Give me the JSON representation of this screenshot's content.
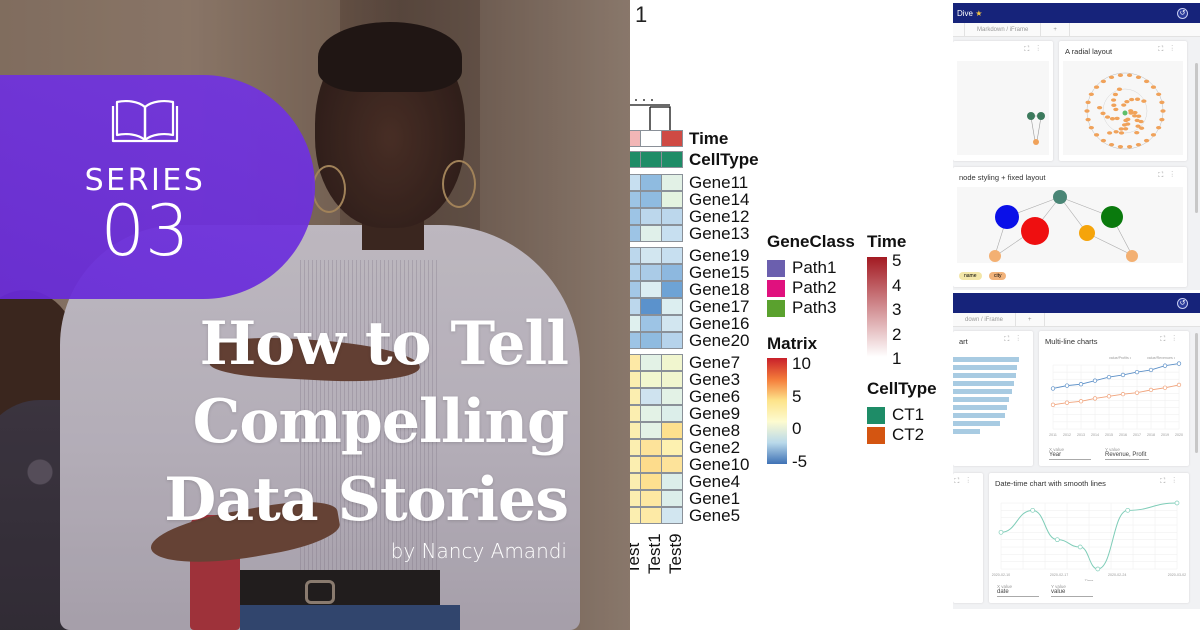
{
  "left_panel": {
    "badge": {
      "icon": "open-book-icon",
      "label": "SERIES",
      "number": "03",
      "color": "#6c2be0"
    },
    "headline_lines": [
      "How to Tell",
      "Compelling",
      "Data Stories"
    ],
    "byline": "by Nancy Amandi"
  },
  "heatmap": {
    "title_fragment": "1",
    "annotation_rows": [
      {
        "label": "Time",
        "colors": [
          "#f2b6b6",
          "#ffffff",
          "#cf4a44"
        ]
      },
      {
        "label": "CellType",
        "colors": [
          "#1e8c67",
          "#1e8c67",
          "#1e8c67"
        ]
      }
    ],
    "gene_groups": [
      {
        "genes": [
          {
            "label": "Gene11",
            "colors": [
              "#c7dff0",
              "#8fbbe0",
              "#e2f1e6"
            ]
          },
          {
            "label": "Gene14",
            "colors": [
              "#9dc4e5",
              "#8fbbe0",
              "#e4f3e0"
            ]
          },
          {
            "label": "Gene12",
            "colors": [
              "#9dc4e5",
              "#bcd7ec",
              "#bcd7ec"
            ]
          },
          {
            "label": "Gene13",
            "colors": [
              "#9dc4e5",
              "#e0f0ea",
              "#c7dff0"
            ]
          }
        ]
      },
      {
        "genes": [
          {
            "label": "Gene19",
            "colors": [
              "#bcd7ec",
              "#d2e6f0",
              "#c7dff0"
            ]
          },
          {
            "label": "Gene15",
            "colors": [
              "#b0d0ea",
              "#aacbe7",
              "#8db8df"
            ]
          },
          {
            "label": "Gene18",
            "colors": [
              "#a3c7e6",
              "#dcedf2",
              "#6ea3d5"
            ]
          },
          {
            "label": "Gene17",
            "colors": [
              "#bcd7ec",
              "#5b92cc",
              "#dceef0"
            ]
          },
          {
            "label": "Gene16",
            "colors": [
              "#dff0ee",
              "#9dc4e5",
              "#d2e6f0"
            ]
          },
          {
            "label": "Gene20",
            "colors": [
              "#9dc4e5",
              "#8fbbe0",
              "#b6d3eb"
            ]
          }
        ]
      },
      {
        "genes": [
          {
            "label": "Gene7",
            "colors": [
              "#fde9a6",
              "#e3f2e6",
              "#f1f6cf"
            ]
          },
          {
            "label": "Gene3",
            "colors": [
              "#fbeeb0",
              "#f2f7cf",
              "#f1f6cf"
            ]
          },
          {
            "label": "Gene6",
            "colors": [
              "#fbeeb0",
              "#cfe3ef",
              "#e3f2e6"
            ]
          },
          {
            "label": "Gene9",
            "colors": [
              "#fbeeb0",
              "#e3f2e6",
              "#dceeea"
            ]
          },
          {
            "label": "Gene8",
            "colors": [
              "#fbeeb0",
              "#e3f2e6",
              "#fde08e"
            ]
          },
          {
            "label": "Gene2",
            "colors": [
              "#fbeeb0",
              "#fde39a",
              "#fdf1b0"
            ]
          },
          {
            "label": "Gene10",
            "colors": [
              "#fbeeb0",
              "#fddc8c",
              "#fde39a"
            ]
          },
          {
            "label": "Gene4",
            "colors": [
              "#fbeeb0",
              "#fde090",
              "#dceeea"
            ]
          },
          {
            "label": "Gene1",
            "colors": [
              "#fbeeb0",
              "#fde8a2",
              "#dceeea"
            ]
          },
          {
            "label": "Gene5",
            "colors": [
              "#fbeeb0",
              "#fdeaa6",
              "#d2e6f0"
            ]
          }
        ]
      }
    ],
    "column_labels": [
      "Test",
      "Test1",
      "Test9"
    ],
    "legends": {
      "gene_class": {
        "title": "GeneClass",
        "items": [
          {
            "label": "Path1",
            "color": "#6b5fae"
          },
          {
            "label": "Path2",
            "color": "#e0117e"
          },
          {
            "label": "Path3",
            "color": "#5aa12e"
          }
        ]
      },
      "time": {
        "title": "Time",
        "ticks": [
          "5",
          "4",
          "3",
          "2",
          "1"
        ],
        "gradient": [
          "#a31a22",
          "#ffffff"
        ]
      },
      "matrix": {
        "title": "Matrix",
        "ticks": [
          "10",
          "5",
          "0",
          "-5"
        ],
        "gradient": [
          "#c8202a",
          "#f47b3a",
          "#fde38a",
          "#fdfbd0",
          "#b9d9ea",
          "#3f72b5"
        ]
      },
      "cell_type": {
        "title": "CellType",
        "items": [
          {
            "label": "CT1",
            "color": "#1e8c67"
          },
          {
            "label": "CT2",
            "color": "#d45511"
          }
        ]
      }
    }
  },
  "dashboard": {
    "screen1": {
      "app_title": "Dive",
      "tabs": [
        "",
        "Markdown / iFrame",
        "+"
      ],
      "cards": [
        {
          "title": ""
        },
        {
          "title": "A radial layout"
        },
        {
          "title": "node styling + fixed layout"
        }
      ],
      "chips": [
        {
          "label": "name",
          "color": "#f3e6a8"
        },
        {
          "label": "city",
          "color": "#f2b37b"
        }
      ],
      "chip_labels": [
        "Tie",
        "Storage"
      ]
    },
    "screen2": {
      "tabs": [
        "down / iFrame",
        "+"
      ],
      "cards": [
        {
          "title": "art"
        },
        {
          "title": "Multi-line charts"
        },
        {
          "title": "Date-time chart with smooth lines"
        }
      ],
      "multiline": {
        "legend": [
          "value/Profits",
          "value/Revenues"
        ],
        "x_ticks": [
          "2011",
          "2012",
          "2013",
          "2014",
          "2015",
          "2016",
          "2017",
          "2018",
          "2019",
          "2020"
        ],
        "controls": [
          {
            "label": "X value",
            "value": "Year"
          },
          {
            "label": "Y value",
            "value": "Revenue, Profit"
          }
        ]
      },
      "datetime": {
        "x_ticks": [
          "2020-02-10",
          "2020-02-17",
          "2020-02-24",
          "2020-03-02"
        ],
        "x_label": "Time",
        "controls": [
          {
            "label": "X value",
            "value": "date"
          },
          {
            "label": "Y value",
            "value": "value"
          }
        ]
      }
    }
  },
  "chart_data": [
    {
      "type": "heatmap",
      "title": "",
      "rows": [
        "Gene11",
        "Gene14",
        "Gene12",
        "Gene13",
        "Gene19",
        "Gene15",
        "Gene18",
        "Gene17",
        "Gene16",
        "Gene20",
        "Gene7",
        "Gene3",
        "Gene6",
        "Gene9",
        "Gene8",
        "Gene2",
        "Gene10",
        "Gene4",
        "Gene1",
        "Gene5"
      ],
      "columns": [
        "Test",
        "Test1",
        "Test9"
      ],
      "color_scale": {
        "name": "Matrix",
        "range": [
          -5,
          10
        ]
      }
    },
    {
      "type": "line",
      "title": "Multi-line charts",
      "categories": [
        "2011",
        "2012",
        "2013",
        "2014",
        "2015",
        "2016",
        "2017",
        "2018",
        "2019",
        "2020"
      ],
      "series": [
        {
          "name": "value/Revenues",
          "values": [
            5.7,
            6.1,
            6.3,
            6.8,
            7.3,
            7.6,
            8.0,
            8.3,
            8.9,
            9.2
          ]
        },
        {
          "name": "value/Profits",
          "values": [
            3.4,
            3.7,
            3.9,
            4.3,
            4.6,
            4.9,
            5.1,
            5.5,
            5.8,
            6.2
          ]
        }
      ],
      "ylim": [
        0,
        9
      ]
    },
    {
      "type": "line",
      "title": "Date-time chart with smooth lines",
      "x": [
        "2020-02-10",
        "2020-02-14",
        "2020-02-17",
        "2020-02-20",
        "2020-02-24",
        "2020-02-27",
        "2020-03-04"
      ],
      "values": [
        5,
        8,
        4,
        3,
        0,
        8,
        9
      ],
      "xlabel": "Time",
      "ylim": [
        0,
        9
      ]
    }
  ]
}
